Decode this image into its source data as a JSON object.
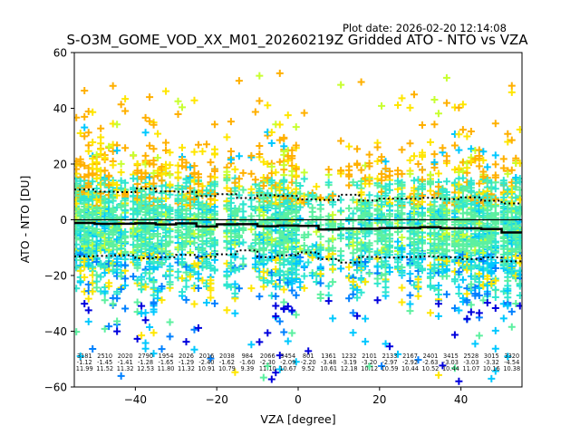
{
  "chart_data": {
    "type": "scatter",
    "title": "S-O3M_GOME_VOD_XX_M01_20260219Z Gridded ATO - NTO vs VZA",
    "plot_date": "Plot date: 2026-02-20 12:14:08",
    "xlabel": "VZA [degree]",
    "ylabel": "ATO - NTO [DU]",
    "xlim": [
      -55,
      55
    ],
    "ylim": [
      -60,
      60
    ],
    "xticks": [
      -40,
      -20,
      0,
      20,
      40
    ],
    "xtick_labels": [
      "−40",
      "−20",
      "0",
      "20",
      "40"
    ],
    "yticks": [
      60,
      40,
      20,
      0,
      -20,
      -40,
      -60
    ],
    "ytick_labels": [
      "60",
      "40",
      "20",
      "0",
      "−20",
      "−40",
      "−60"
    ],
    "grid": false,
    "marker": "plus",
    "colormap": "jet",
    "reference_line_y": 0,
    "bin_width_deg": 5,
    "bins": {
      "x_start": [
        -55,
        -50,
        -45,
        -40,
        -35,
        -30,
        -25,
        -20,
        -15,
        -10,
        -5,
        0,
        5,
        10,
        15,
        20,
        25,
        30,
        35,
        40,
        45,
        50
      ],
      "count": [
        3181,
        2510,
        2020,
        2790,
        1954,
        2026,
        2016,
        2038,
        984,
        2066,
        3454,
        801,
        1361,
        1232,
        2101,
        2133,
        2167,
        2401,
        3415,
        2528,
        3015,
        3320
      ],
      "mean": [
        -1.12,
        -1.45,
        -1.41,
        -1.28,
        -1.65,
        -1.29,
        -2.4,
        -1.62,
        -1.6,
        -2.3,
        -2.09,
        -2.2,
        -3.48,
        -3.19,
        -3.2,
        -2.97,
        -2.92,
        -2.63,
        -3.03,
        -3.03,
        -3.32,
        -4.54
      ],
      "std": [
        11.99,
        11.52,
        11.32,
        12.53,
        11.8,
        11.32,
        10.91,
        10.79,
        9.39,
        11.1,
        10.67,
        9.52,
        10.61,
        12.18,
        10.12,
        10.59,
        10.44,
        10.52,
        10.44,
        11.07,
        10.16,
        10.38
      ]
    },
    "annotations": {
      "count_labels": [
        "3181",
        "2510",
        "2020",
        "2790",
        "1954",
        "2026",
        "2016",
        "2038",
        "984",
        "2066",
        "3454",
        "801",
        "1361",
        "1232",
        "2101",
        "2133",
        "2167",
        "2401",
        "3415",
        "2528",
        "3015",
        "3320"
      ],
      "mean_labels": [
        "-1.12",
        "-1.45",
        "-1.41",
        "-1.28",
        "-1.65",
        "-1.29",
        "-2.40",
        "-1.62",
        "-1.60",
        "-2.30",
        "-2.09",
        "-2.20",
        "-3.48",
        "-3.19",
        "-3.20",
        "-2.97",
        "-2.92",
        "-2.63",
        "-3.03",
        "-3.03",
        "-3.32",
        "-4.54"
      ],
      "std_labels": [
        "11.99",
        "11.52",
        "11.32",
        "12.53",
        "11.80",
        "11.32",
        "10.91",
        "10.79",
        "9.39",
        "11.10",
        "10.67",
        "9.52",
        "10.61",
        "12.18",
        "10.12",
        "10.59",
        "10.44",
        "10.52",
        "10.44",
        "11.07",
        "10.16",
        "10.38"
      ]
    },
    "colors": {
      "mean_line": "#000000",
      "std_lines": "#000000",
      "zero_line": "#000000",
      "marker_palette": [
        "#0000dd",
        "#0080ff",
        "#00c8ff",
        "#2ee6d0",
        "#5cf0a0",
        "#9cff5c",
        "#c8ff30",
        "#ffe600",
        "#ffb000"
      ]
    }
  }
}
